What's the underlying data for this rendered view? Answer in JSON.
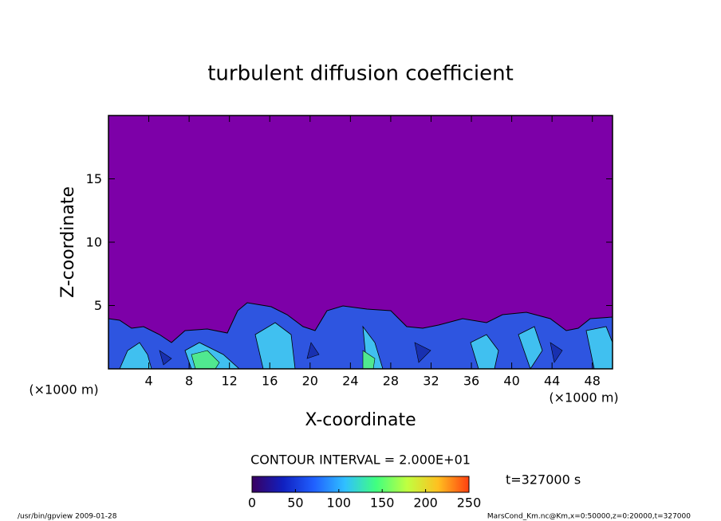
{
  "chart_data": {
    "type": "contour",
    "title": "turbulent diffusion coefficient",
    "x_label": "X-coordinate",
    "y_label": "Z-coordinate",
    "x_unit": "(×1000 m)",
    "y_unit": "(×1000 m)",
    "xlim": [
      0,
      50
    ],
    "xticks": [
      4,
      8,
      12,
      16,
      20,
      24,
      28,
      32,
      36,
      40,
      44,
      48
    ],
    "ylim": [
      0,
      20
    ],
    "yticks": [
      5,
      10,
      15
    ],
    "background_color": "#7d00a8",
    "contour_interval": "CONTOUR INTERVAL = 2.000E+01",
    "time_label": "t=327000 s",
    "colorbar": {
      "range": [
        0,
        250
      ],
      "ticks": [
        0,
        50,
        100,
        150,
        200,
        250
      ],
      "colors": [
        "#3a0060",
        "#1020c0",
        "#2060ff",
        "#30c0ff",
        "#40ff80",
        "#c0ff40",
        "#ffc020",
        "#ff4010"
      ]
    },
    "footer_left": "/usr/bin/gpview   2009-01-28",
    "footer_right": "MarsCond_Km.nc@Km,x=0:50000,z=0:20000,t=327000"
  }
}
